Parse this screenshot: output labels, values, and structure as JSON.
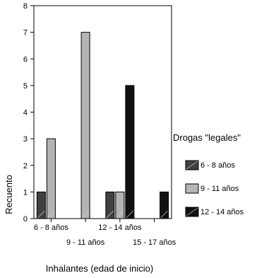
{
  "chart_data": {
    "type": "bar",
    "xlabel": "Inhalantes (edad de inicio)",
    "ylabel": "Recuento",
    "ylim": [
      0,
      8
    ],
    "yticks": [
      0,
      1,
      2,
      3,
      4,
      5,
      6,
      7,
      8
    ],
    "grid": false,
    "legend_position": "right",
    "legend_title": "Drogas \"legales\"",
    "categories": [
      "6 - 8 años",
      "9 - 11 años",
      "12 - 14 años",
      "15 - 17 años"
    ],
    "series": [
      {
        "name": "6 - 8 años",
        "values": [
          1,
          null,
          1,
          null
        ],
        "color": "#404040"
      },
      {
        "name": "9 - 11 años",
        "values": [
          3,
          7,
          1,
          null
        ],
        "color": "#b4b4b4"
      },
      {
        "name": "12 - 14 años",
        "values": [
          null,
          null,
          5,
          1
        ],
        "color": "#111111"
      }
    ]
  }
}
